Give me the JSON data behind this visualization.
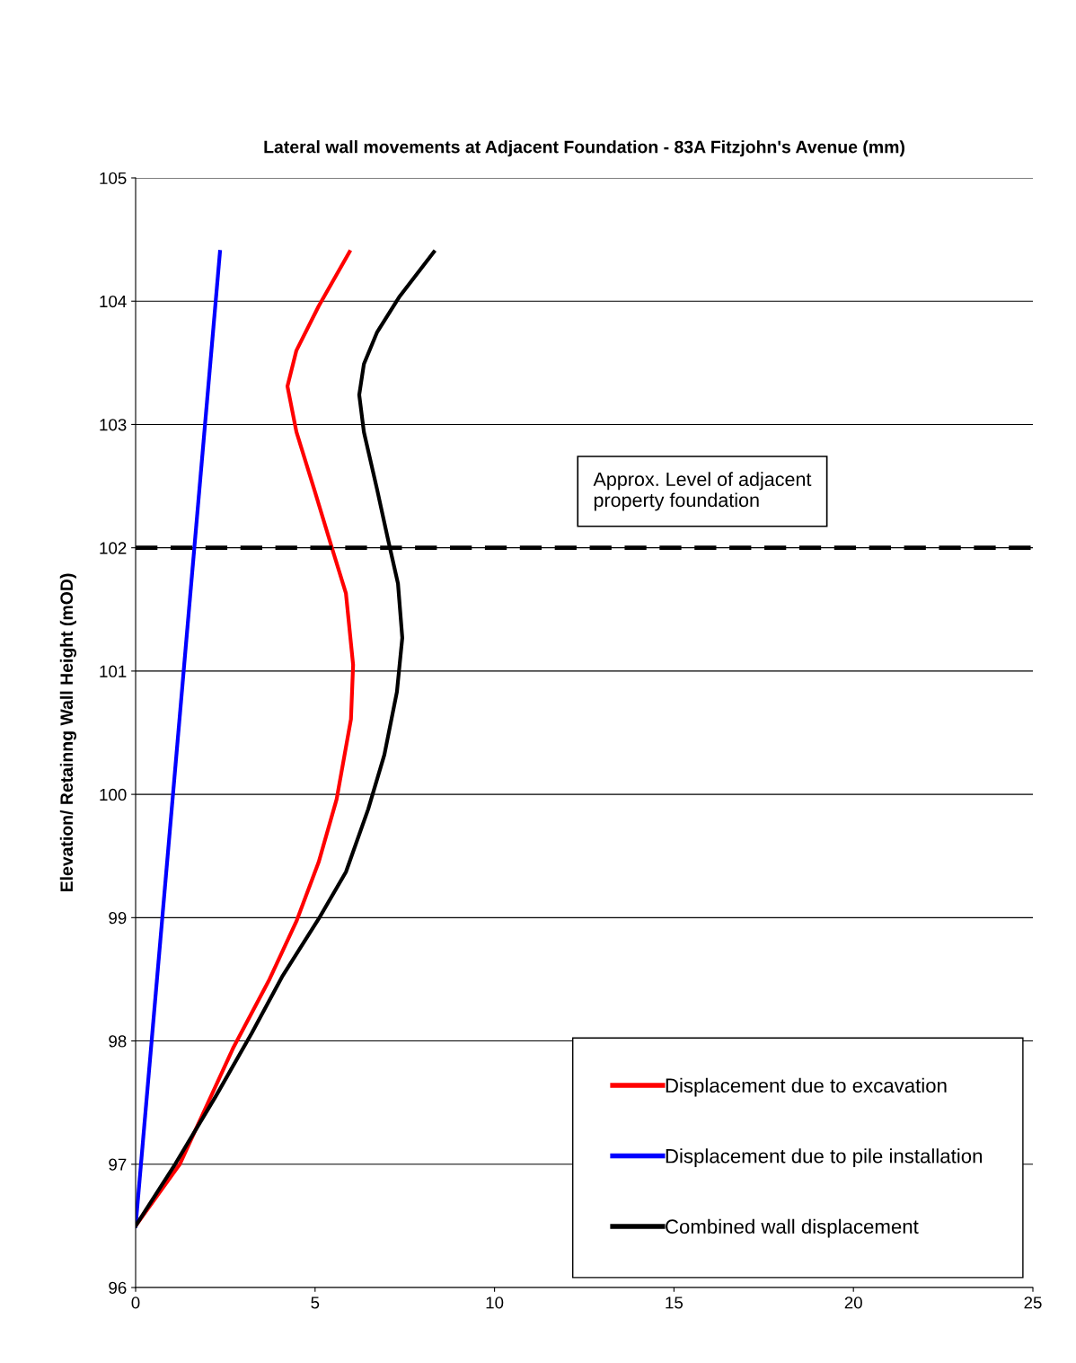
{
  "chart_data": {
    "type": "line",
    "title": "Lateral wall movements at Adjacent Foundation - 83A Fitzjohn's Avenue (mm)",
    "ylabel": "Elevation/ Retainng Wall Height (mOD)",
    "series": [
      {
        "name": "Displacement due to excavation",
        "color": "#ff0000",
        "x": [
          0,
          1.23,
          2.73,
          3.73,
          4.48,
          5.1,
          5.6,
          6.0,
          6.06,
          5.86,
          5.48,
          4.98,
          4.48,
          4.23,
          4.48,
          5.1,
          5.96
        ],
        "values": [
          96.5,
          97.0,
          97.95,
          98.5,
          98.97,
          99.45,
          99.96,
          100.61,
          101.05,
          101.63,
          101.99,
          102.47,
          102.94,
          103.31,
          103.6,
          103.96,
          104.4
        ]
      },
      {
        "name": "Displacement due to pile installation",
        "color": "#0000ff",
        "x": [
          0,
          2.35
        ],
        "values": [
          96.5,
          104.4
        ]
      },
      {
        "name": "Combined wall displacement",
        "color": "#000000",
        "x": [
          0,
          1.1,
          2.23,
          3.23,
          4.1,
          5.1,
          5.86,
          6.48,
          6.93,
          7.28,
          7.43,
          7.31,
          7.03,
          6.73,
          6.36,
          6.23,
          6.36,
          6.73,
          7.36,
          8.31
        ],
        "values": [
          96.5,
          97.0,
          97.55,
          98.06,
          98.53,
          98.99,
          99.37,
          99.88,
          100.32,
          100.83,
          101.27,
          101.71,
          102.07,
          102.47,
          102.94,
          103.24,
          103.49,
          103.75,
          104.04,
          104.4
        ]
      }
    ],
    "xlim": [
      0,
      25
    ],
    "xticks": [
      0,
      5,
      10,
      15,
      20,
      25
    ],
    "ylim": [
      96,
      105
    ],
    "yticks": [
      96,
      97,
      98,
      99,
      100,
      101,
      102,
      103,
      104,
      105
    ],
    "ref_lines": [
      {
        "axis": "y",
        "value": 102,
        "label": "Approx. Level of adjacent\nproperty foundation",
        "color": "#000000",
        "line_style": "dashed"
      }
    ],
    "grid": "y",
    "legend": "bottom right",
    "marker": "none",
    "line_style": "solid"
  }
}
